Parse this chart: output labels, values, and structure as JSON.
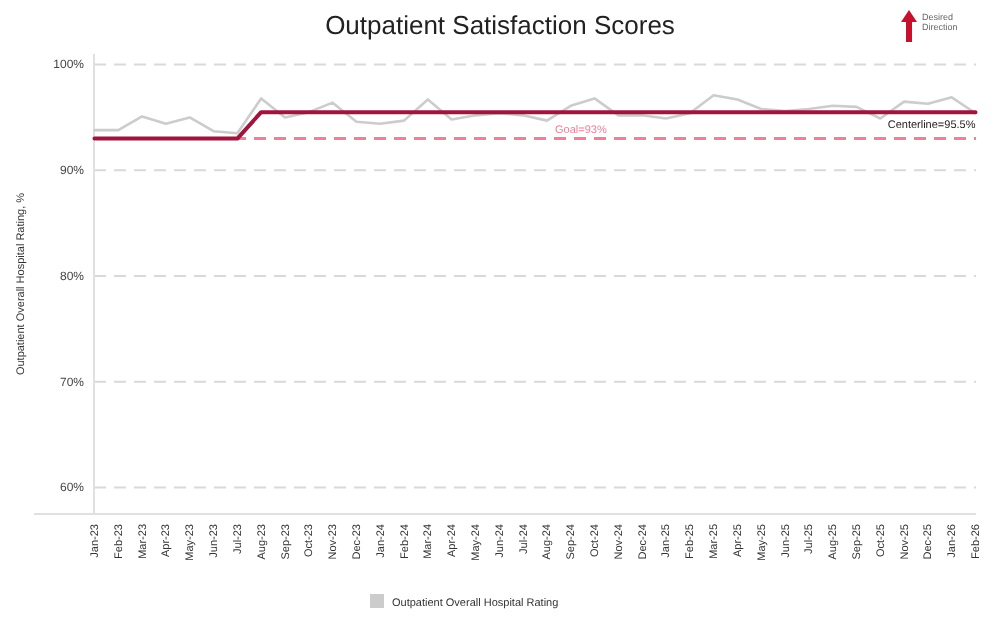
{
  "chart_data": {
    "type": "line",
    "title": "Outpatient Satisfaction Scores",
    "ylabel": "Outpatient Overall Hospital Rating, %",
    "categories": [
      "Jan-23",
      "Feb-23",
      "Mar-23",
      "Apr-23",
      "May-23",
      "Jun-23",
      "Jul-23",
      "Aug-23",
      "Sep-23",
      "Oct-23",
      "Nov-23",
      "Dec-23",
      "Jan-24",
      "Feb-24",
      "Mar-24",
      "Apr-24",
      "May-24",
      "Jun-24",
      "Jul-24",
      "Aug-24",
      "Sep-24",
      "Oct-24",
      "Nov-24",
      "Dec-24",
      "Jan-25",
      "Feb-25",
      "Mar-25",
      "Apr-25",
      "May-25",
      "Jun-25",
      "Jul-25",
      "Aug-25",
      "Sep-25",
      "Oct-25",
      "Nov-25",
      "Dec-25",
      "Jan-26",
      "Feb-26"
    ],
    "series": [
      {
        "name": "Outpatient Overall Hospital Rating",
        "color": "#cccccc",
        "values": [
          93.8,
          93.8,
          95.1,
          94.4,
          95.0,
          93.7,
          93.5,
          96.8,
          95.0,
          95.5,
          96.4,
          94.6,
          94.4,
          94.7,
          96.7,
          94.8,
          95.2,
          95.4,
          95.2,
          94.7,
          96.1,
          96.8,
          95.2,
          95.2,
          94.9,
          95.4,
          97.1,
          96.7,
          95.8,
          95.6,
          95.8,
          96.1,
          96.0,
          94.9,
          96.5,
          96.3,
          96.9,
          95.4
        ]
      },
      {
        "color": "#a0153e",
        "values": [
          93,
          93,
          93,
          93,
          93,
          93,
          93,
          95.5,
          95.5,
          95.5,
          95.5,
          95.5,
          95.5,
          95.5,
          95.5,
          95.5,
          95.5,
          95.5,
          95.5,
          95.5,
          95.5,
          95.5,
          95.5,
          95.5,
          95.5,
          95.5,
          95.5,
          95.5,
          95.5,
          95.5,
          95.5,
          95.5,
          95.5,
          95.5,
          95.5,
          95.5,
          95.5,
          95.5
        ]
      }
    ],
    "ylim": [
      57.5,
      101
    ],
    "yticks": [
      {
        "value": 60,
        "label": "60%"
      },
      {
        "value": 70,
        "label": "70%"
      },
      {
        "value": 80,
        "label": "80%"
      },
      {
        "value": 90,
        "label": "90%"
      },
      {
        "value": 100,
        "label": "100%"
      }
    ],
    "grid": "y",
    "legend": "bottom",
    "line_style": "solid",
    "ref_lines": [
      {
        "axis": "y",
        "value": 93,
        "label": "Goal=93%",
        "color": "#f07f9c",
        "line_style": "dashed"
      }
    ],
    "annotations": [
      {
        "text": "Centerline=95.5%",
        "x": "Feb-26",
        "y": 95.5
      },
      "Desired Direction"
    ]
  }
}
